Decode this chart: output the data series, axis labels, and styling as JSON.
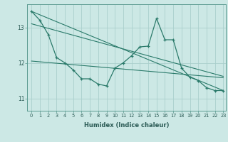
{
  "title": "",
  "xlabel": "Humidex (Indice chaleur)",
  "bg_color": "#cce8e5",
  "line_color": "#2a7a6a",
  "grid_color": "#aacfcc",
  "spine_color": "#5a9a90",
  "tick_color": "#2a5a54",
  "xlim": [
    -0.5,
    23.3
  ],
  "ylim": [
    10.65,
    13.65
  ],
  "yticks": [
    11,
    12,
    13
  ],
  "xticks": [
    0,
    1,
    2,
    3,
    4,
    5,
    6,
    7,
    8,
    9,
    10,
    11,
    12,
    13,
    14,
    15,
    16,
    17,
    18,
    19,
    20,
    21,
    22,
    23
  ],
  "series1_x": [
    0,
    1,
    2,
    3,
    4,
    5,
    6,
    7,
    8,
    9,
    10,
    11,
    12,
    13,
    14,
    15,
    16,
    17,
    18,
    19,
    20,
    21,
    22,
    23
  ],
  "series1_y": [
    13.45,
    13.2,
    12.8,
    12.15,
    12.0,
    11.8,
    11.55,
    11.55,
    11.4,
    11.35,
    11.85,
    12.0,
    12.2,
    12.45,
    12.47,
    13.25,
    12.65,
    12.65,
    11.85,
    11.6,
    11.5,
    11.3,
    11.22,
    11.22
  ],
  "line1_x": [
    0,
    23
  ],
  "line1_y": [
    13.45,
    11.22
  ],
  "line2_x": [
    0,
    23
  ],
  "line2_y": [
    13.1,
    11.62
  ],
  "line3_x": [
    0,
    23
  ],
  "line3_y": [
    12.05,
    11.58
  ]
}
